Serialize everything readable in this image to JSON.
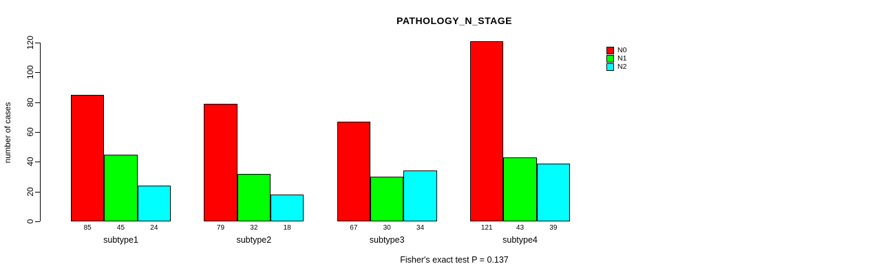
{
  "chart_data": {
    "type": "bar",
    "title": "PATHOLOGY_N_STAGE",
    "categories": [
      "subtype1",
      "subtype2",
      "subtype3",
      "subtype4"
    ],
    "series": [
      {
        "name": "N0",
        "color": "#FF0000",
        "values": [
          85,
          79,
          67,
          121
        ]
      },
      {
        "name": "N1",
        "color": "#00FF00",
        "values": [
          45,
          32,
          30,
          43
        ]
      },
      {
        "name": "N2",
        "color": "#00FFFF",
        "values": [
          24,
          18,
          34,
          39
        ]
      }
    ],
    "xlabel": "",
    "ylabel": "number of cases",
    "ylim": [
      0,
      120
    ],
    "yticks": [
      0,
      20,
      40,
      60,
      80,
      100,
      120
    ],
    "grid": false,
    "legend_position": "top-right",
    "bar_value_labels": true,
    "annotation": "Fisher's exact test P = 0.137"
  }
}
